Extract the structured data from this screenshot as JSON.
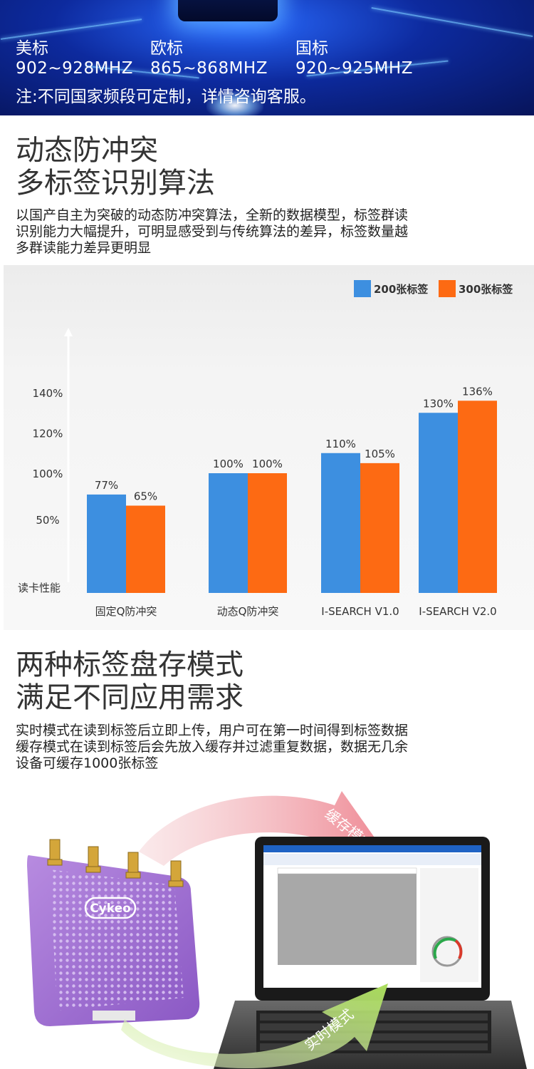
{
  "banner": {
    "regions": [
      {
        "name": "美标",
        "range": "902~928MHZ"
      },
      {
        "name": "欧标",
        "range": "865~868MHZ"
      },
      {
        "name": "国标",
        "range": "920~925MHZ"
      }
    ],
    "note": "注:不同国家频段可定制，详情咨询客服。"
  },
  "section1": {
    "title_line1": "动态防冲突",
    "title_line2": "多标签识别算法",
    "desc_line1": "以国产自主为突破的动态防冲突算法，全新的数据模型，标签群读",
    "desc_line2": "识别能力大幅提升，可明显感受到与传统算法的差异，标签数量越",
    "desc_line3": "多群读能力差异更明显"
  },
  "chart_data": {
    "type": "bar",
    "categories": [
      "固定Q防冲突",
      "动态Q防冲突",
      "I-SEARCH V1.0",
      "I-SEARCH V2.0"
    ],
    "series": [
      {
        "name": "200张标签",
        "color": "#3d8fe0",
        "values": [
          77,
          100,
          110,
          130
        ],
        "labels": [
          "77%",
          "100%",
          "110%",
          "130%"
        ]
      },
      {
        "name": "300张标签",
        "color": "#fd6a13",
        "values": [
          65,
          100,
          105,
          136
        ],
        "labels": [
          "65%",
          "100%",
          "105%",
          "136%"
        ]
      }
    ],
    "ylabel": "读卡性能",
    "yticks": [
      "50%",
      "100%",
      "120%",
      "140%"
    ],
    "ytick_values": [
      50,
      100,
      120,
      140
    ],
    "scale_note": "non-linear axis: 50% at lower tick, 100/120/140 evenly spaced",
    "legend_position": "top-right",
    "grid": false
  },
  "section2": {
    "title_line1": "两种标签盘存模式",
    "title_line2": "满足不同应用需求",
    "desc_line1": "实时模式在读到标签后立即上传，用户可在第一时间得到标签数据",
    "desc_line2": "缓存模式在读到标签后会先放入缓存并过滤重复数据，数据无几余",
    "desc_line3": "设备可缓存1000张标签"
  },
  "illustration": {
    "brand": "Cykeo",
    "arrow_top_label": "缓存模式",
    "arrow_bottom_label": "实时模式"
  }
}
